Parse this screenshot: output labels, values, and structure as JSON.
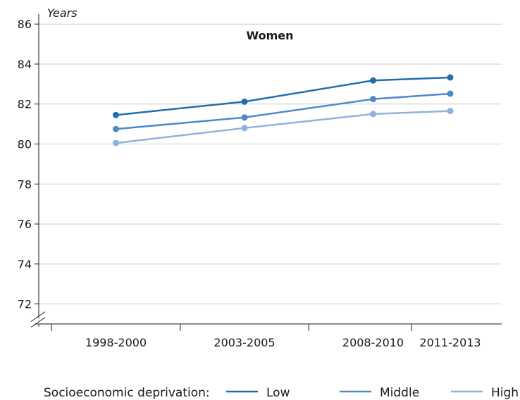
{
  "chart_data": {
    "type": "line",
    "title": "Women",
    "ylabel": "Years",
    "xlabel": "",
    "categories": [
      "1998-2000",
      "2003-2005",
      "2008-2010",
      "2011-2013"
    ],
    "x_positions": [
      1999,
      2004,
      2009,
      2012
    ],
    "xlim": [
      1996,
      2014
    ],
    "ylim": [
      71,
      86.5
    ],
    "yticks": [
      72,
      74,
      76,
      78,
      80,
      82,
      84,
      86
    ],
    "grid": true,
    "axis_break": true,
    "legend": {
      "title": "Socioeconomic deprivation:",
      "placement": "bottom"
    },
    "series": [
      {
        "name": "Low",
        "color": "#1f6fad",
        "values": [
          81.45,
          82.12,
          83.18,
          83.33
        ]
      },
      {
        "name": "Middle",
        "color": "#4d8ac6",
        "values": [
          80.75,
          81.33,
          82.25,
          82.52
        ]
      },
      {
        "name": "High",
        "color": "#8eb2dc",
        "values": [
          80.05,
          80.8,
          81.5,
          81.65
        ]
      }
    ]
  }
}
